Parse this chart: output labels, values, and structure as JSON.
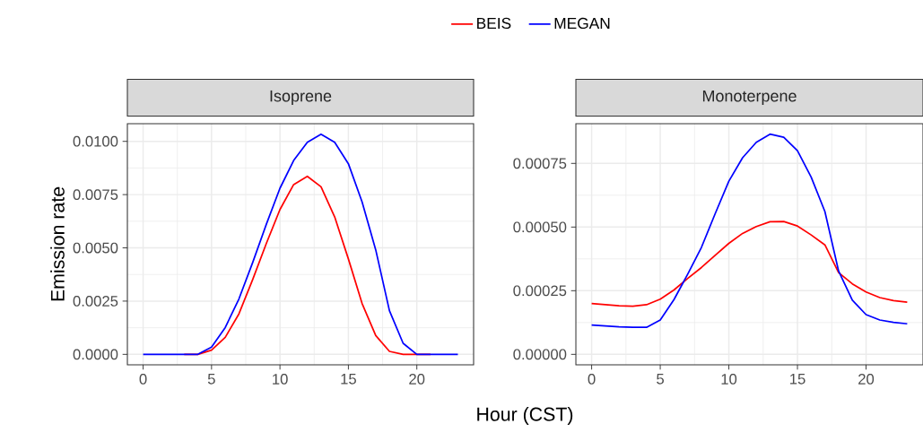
{
  "chart_data": [
    {
      "type": "line",
      "title": "Isoprene",
      "xlabel": "Hour (CST)",
      "ylabel": "Emission rate",
      "legend": "top",
      "grid": true,
      "line_style": "solid",
      "x": [
        0,
        1,
        2,
        3,
        4,
        5,
        6,
        7,
        8,
        9,
        10,
        11,
        12,
        13,
        14,
        15,
        16,
        17,
        18,
        19,
        20,
        21,
        22,
        23
      ],
      "xlim": [
        -1.15,
        24.15
      ],
      "xticks": [
        0,
        5,
        10,
        15,
        20
      ],
      "ylim": [
        -0.00049,
        0.01083
      ],
      "yticks": [
        {
          "value": 0,
          "label": "0.0000"
        },
        {
          "value": 0.0025,
          "label": "0.0025"
        },
        {
          "value": 0.005,
          "label": "0.0050"
        },
        {
          "value": 0.0075,
          "label": "0.0075"
        },
        {
          "value": 0.01,
          "label": "0.0100"
        }
      ],
      "series": [
        {
          "name": "BEIS",
          "color": "#ff0000",
          "values": [
            null,
            null,
            null,
            0,
            0,
            0.0002,
            0.0008,
            0.0019,
            0.0035,
            0.0052,
            0.0068,
            0.00797,
            0.00836,
            0.00787,
            0.00645,
            0.00448,
            0.00239,
            0.00088,
            0.00014,
            0,
            0,
            0,
            null,
            null
          ]
        },
        {
          "name": "MEGAN",
          "color": "#0000ff",
          "values": [
            0,
            0,
            0,
            0,
            0,
            0.00034,
            0.00126,
            0.0026,
            0.0043,
            0.0061,
            0.0078,
            0.0091,
            0.00996,
            0.01034,
            0.00996,
            0.00895,
            0.00716,
            0.0049,
            0.00205,
            0.00052,
            0,
            0,
            0,
            0
          ]
        }
      ]
    },
    {
      "type": "line",
      "title": "Monoterpene",
      "grid": true,
      "line_style": "solid",
      "x": [
        0,
        1,
        2,
        3,
        4,
        5,
        6,
        7,
        8,
        9,
        10,
        11,
        12,
        13,
        14,
        15,
        16,
        17,
        18,
        19,
        20,
        21,
        22,
        23
      ],
      "xlim": [
        -1.15,
        24.15
      ],
      "xticks": [
        0,
        5,
        10,
        15,
        20
      ],
      "ylim": [
        -4.1e-05,
        0.000906
      ],
      "yticks": [
        {
          "value": 0,
          "label": "0.00000"
        },
        {
          "value": 0.00025,
          "label": "0.00025"
        },
        {
          "value": 0.0005,
          "label": "0.00050"
        },
        {
          "value": 0.00075,
          "label": "0.00075"
        }
      ],
      "series": [
        {
          "color": "#ff0000",
          "values": [
            0.0002,
            0.000195,
            0.000191,
            0.000189,
            0.000195,
            0.000217,
            0.000253,
            0.000298,
            0.000341,
            0.000389,
            0.000436,
            0.000475,
            0.000502,
            0.000521,
            0.000522,
            0.000504,
            0.000469,
            0.00043,
            0.000321,
            0.000277,
            0.000245,
            0.000223,
            0.000211,
            0.000205
          ]
        },
        {
          "color": "#0000ff",
          "values": [
            0.000115,
            0.000112,
            0.000108,
            0.000106,
            0.000106,
            0.000135,
            0.000215,
            0.000315,
            0.00042,
            0.000552,
            0.00068,
            0.000772,
            0.000833,
            0.000865,
            0.000853,
            0.0008,
            0.000696,
            0.000561,
            0.000327,
            0.000213,
            0.000156,
            0.000135,
            0.000126,
            0.00012
          ]
        }
      ]
    }
  ]
}
